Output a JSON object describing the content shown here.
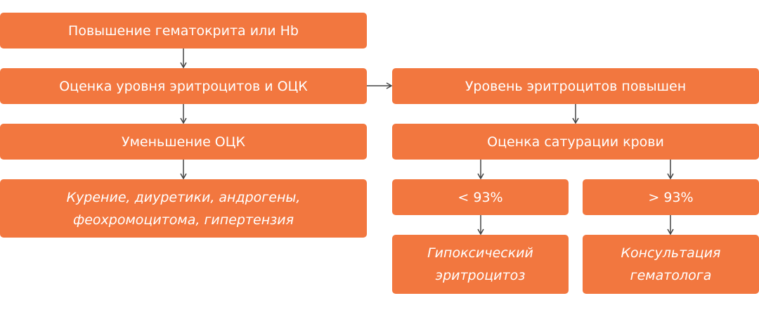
{
  "colors": {
    "box_fill": "#F2773F",
    "text": "#ffffff",
    "arrow": "#444444"
  },
  "nodes": {
    "hematocrit": "Повышение гематокрита или Hb",
    "assessment": "Оценка уровня эритроцитов и ОЦК",
    "rbc_elevated": "Уровень эритроцитов повышен",
    "bcv_reduced": "Уменьшение ОЦК",
    "saturation": "Оценка сатурации крови",
    "causes_line1": "Курение, диуретики, андрогены,",
    "causes_line2": "феохромоцитома, гипертензия",
    "below": "< 93%",
    "above": "> 93%",
    "hypoxic_line1": "Гипоксический",
    "hypoxic_line2": "эритроцитоз",
    "consult_line1": "Консультация",
    "consult_line2": "гематолога"
  }
}
